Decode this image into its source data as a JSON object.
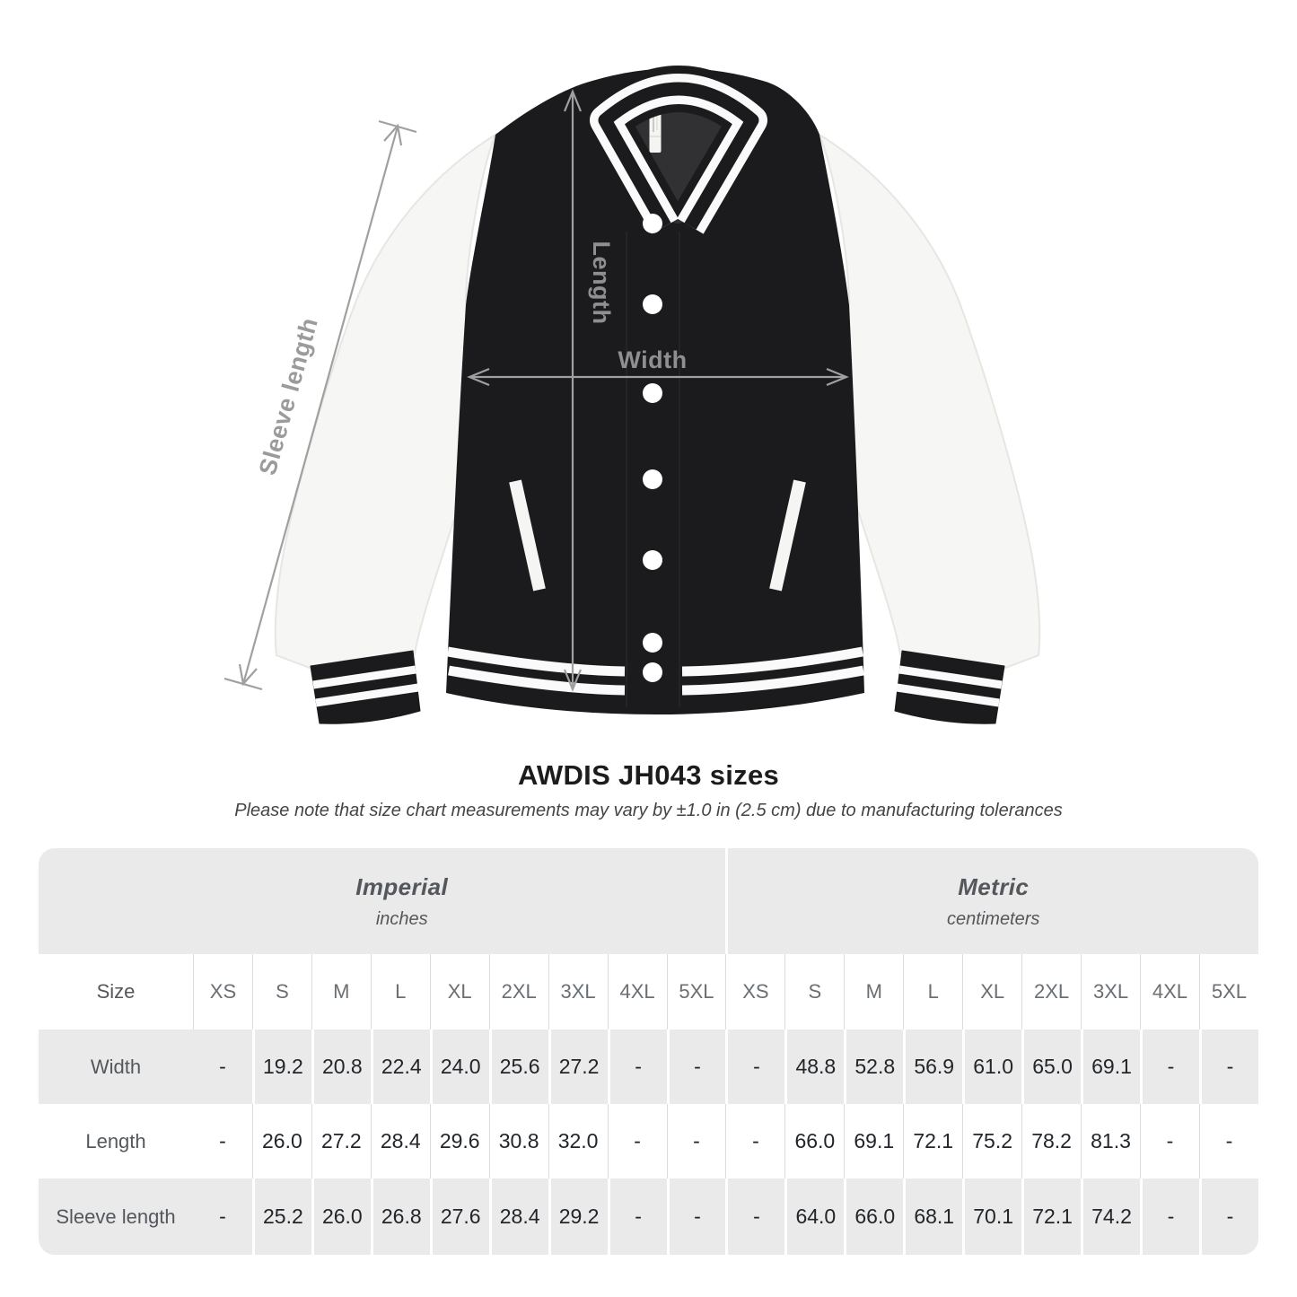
{
  "heading": {
    "title": "AWDIS JH043 sizes",
    "subtitle": "Please note that size chart measurements may vary by ±1.0 in (2.5 cm) due to manufacturing tolerances"
  },
  "diagram": {
    "labels": {
      "sleeve_length": "Sleeve length",
      "length": "Length",
      "width": "Width"
    },
    "colors": {
      "jacket_body": "#1b1b1d",
      "sleeve_white": "#f6f6f4",
      "collar_inner": "#313134",
      "stripe_white": "#fafafa",
      "arrow_gray": "#a0a0a0",
      "label_gray": "#979797"
    }
  },
  "size_table": {
    "colors": {
      "card_gray": "#eaeaea",
      "row_white": "#ffffff",
      "header_text": "#54575b",
      "size_text": "#6a6f74",
      "value_text": "#222529"
    },
    "unit_groups": [
      {
        "name": "Imperial",
        "unit": "inches"
      },
      {
        "name": "Metric",
        "unit": "centimeters"
      }
    ],
    "size_label": "Size",
    "sizes": [
      "XS",
      "S",
      "M",
      "L",
      "XL",
      "2XL",
      "3XL",
      "4XL",
      "5XL"
    ],
    "rows": [
      {
        "label": "Width",
        "imperial": [
          "-",
          "19.2",
          "20.8",
          "22.4",
          "24.0",
          "25.6",
          "27.2",
          "-",
          "-"
        ],
        "metric": [
          "-",
          "48.8",
          "52.8",
          "56.9",
          "61.0",
          "65.0",
          "69.1",
          "-",
          "-"
        ]
      },
      {
        "label": "Length",
        "imperial": [
          "-",
          "26.0",
          "27.2",
          "28.4",
          "29.6",
          "30.8",
          "32.0",
          "-",
          "-"
        ],
        "metric": [
          "-",
          "66.0",
          "69.1",
          "72.1",
          "75.2",
          "78.2",
          "81.3",
          "-",
          "-"
        ]
      },
      {
        "label": "Sleeve length",
        "imperial": [
          "-",
          "25.2",
          "26.0",
          "26.8",
          "27.6",
          "28.4",
          "29.2",
          "-",
          "-"
        ],
        "metric": [
          "-",
          "64.0",
          "66.0",
          "68.1",
          "70.1",
          "72.1",
          "74.2",
          "-",
          "-"
        ]
      }
    ]
  }
}
